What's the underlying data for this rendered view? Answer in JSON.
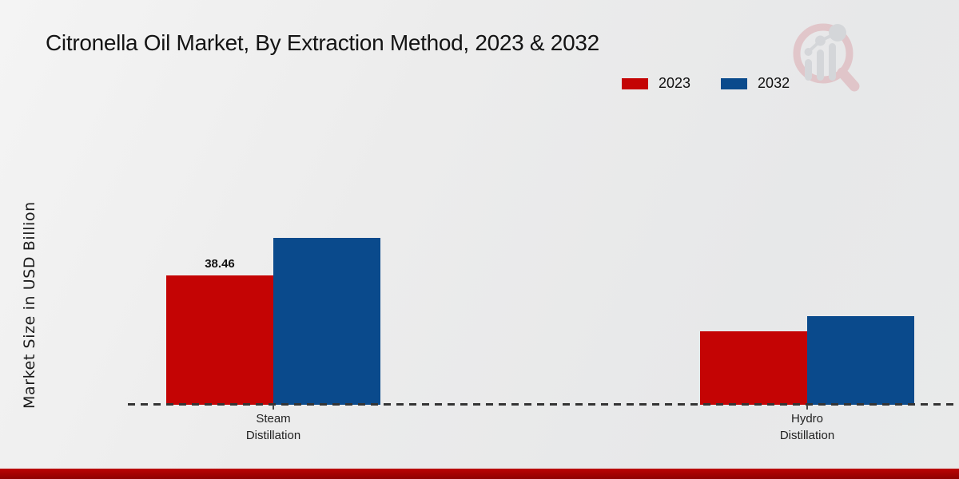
{
  "chart_data": {
    "type": "bar",
    "title": "Citronella Oil Market, By Extraction Method, 2023 & 2032",
    "ylabel": "Market Size in USD Billion",
    "xlabel": "",
    "categories": [
      "Steam Distillation",
      "Hydro Distillation"
    ],
    "series": [
      {
        "name": "2023",
        "color": "#c40404",
        "values": [
          38.46,
          21.8
        ],
        "point_labels": [
          "38.46",
          ""
        ]
      },
      {
        "name": "2032",
        "color": "#0a4a8c",
        "values": [
          49.6,
          26.4
        ],
        "point_labels": [
          "",
          ""
        ]
      }
    ],
    "ylim": [
      0,
      55
    ],
    "grid": false,
    "legend_position": "top-right",
    "baseline_style": "dashed",
    "y_axis_ticks_visible": false
  },
  "footer": {
    "bar_color_top": "#bb0404",
    "bar_color_bottom": "#8e0101"
  },
  "logo": {
    "icon": "magnifier-bar-chart-logo",
    "ring_color": "#dcaab0",
    "glyph_color": "#c6c9cd"
  }
}
